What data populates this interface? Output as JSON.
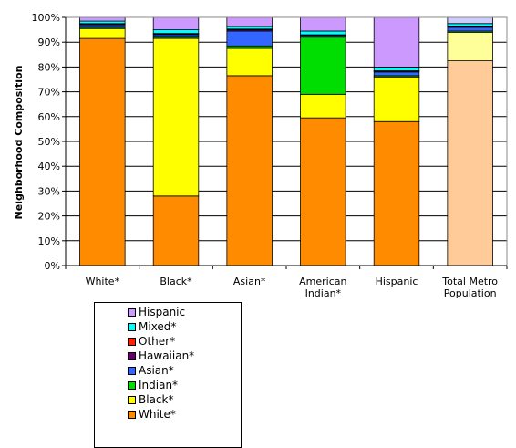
{
  "chart_data": {
    "type": "bar",
    "stacked": true,
    "ylabel": "Neighborhood Composition",
    "ylim": [
      0,
      100
    ],
    "yticks": [
      "0%",
      "10%",
      "20%",
      "30%",
      "40%",
      "50%",
      "60%",
      "70%",
      "80%",
      "90%",
      "100%"
    ],
    "grid": true,
    "legend_position": "bottom",
    "categories": [
      [
        "White*"
      ],
      [
        "Black*"
      ],
      [
        "Asian*"
      ],
      [
        "American",
        "Indian*"
      ],
      [
        "Hispanic"
      ],
      [
        "Total Metro",
        "Population"
      ]
    ],
    "series": [
      {
        "name": "White*",
        "color": "#FF8C00",
        "values": [
          91.5,
          28,
          76.5,
          59.5,
          58,
          82.5
        ],
        "alt_color_last": "#FFCC99"
      },
      {
        "name": "Black*",
        "color": "#FFFF00",
        "values": [
          4,
          63.5,
          11,
          9.5,
          18,
          11.5
        ]
      },
      {
        "name": "Indian*",
        "color": "#00DD00",
        "values": [
          0.5,
          0.5,
          1,
          23,
          0.5,
          0.5
        ]
      },
      {
        "name": "Asian*",
        "color": "#3366FF",
        "values": [
          1,
          1,
          6,
          0.5,
          1.5,
          1.5
        ]
      },
      {
        "name": "Hawaiian*",
        "color": "#660066",
        "values": [
          0.3,
          0.3,
          0.5,
          0.3,
          0.3,
          0.3
        ]
      },
      {
        "name": "Other*",
        "color": "#FF2200",
        "values": [
          0.2,
          0.2,
          0.3,
          0.2,
          0.2,
          0.2
        ]
      },
      {
        "name": "Mixed*",
        "color": "#00FFFF",
        "values": [
          1,
          1.5,
          1,
          1.5,
          1.5,
          1
        ]
      },
      {
        "name": "Hispanic",
        "color": "#CC99FF",
        "values": [
          1.5,
          5,
          3.7,
          5.5,
          20,
          2.5
        ]
      }
    ]
  },
  "legend": {
    "items": [
      {
        "label": "Hispanic",
        "color": "#CC99FF"
      },
      {
        "label": "Mixed*",
        "color": "#00FFFF"
      },
      {
        "label": "Other*",
        "color": "#FF2200"
      },
      {
        "label": "Hawaiian*",
        "color": "#660066"
      },
      {
        "label": "Asian*",
        "color": "#3366FF"
      },
      {
        "label": "Indian*",
        "color": "#00DD00"
      },
      {
        "label": "Black*",
        "color": "#FFFF00"
      },
      {
        "label": "White*",
        "color": "#FF8C00"
      }
    ]
  }
}
